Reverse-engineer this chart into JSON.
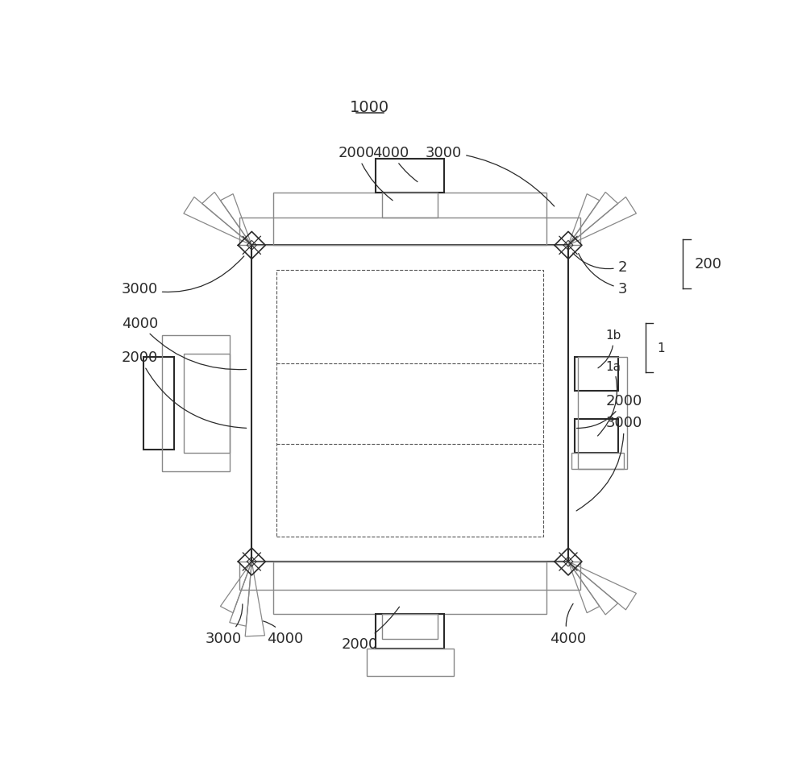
{
  "bg_color": "#ffffff",
  "line_color": "#2a2a2a",
  "dashed_color": "#555555",
  "light_color": "#888888",
  "fontsize": 13,
  "small_fontsize": 11
}
